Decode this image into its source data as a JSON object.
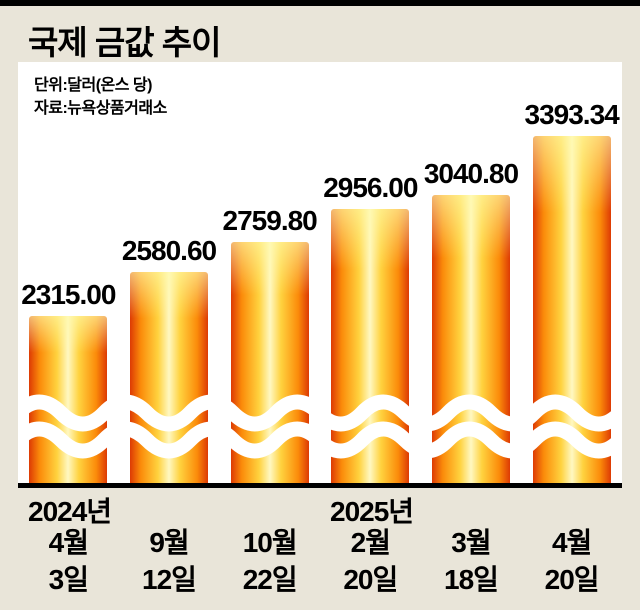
{
  "title": "국제 금값 추이",
  "meta": {
    "unit": "단위:달러(온스 당)",
    "source": "자료:뉴욕상품거래소"
  },
  "colors": {
    "background": "#e9e5d9",
    "plot_background": "#ffffff",
    "bar_edge": "#dd3a04",
    "bar_mid": "#ffd23f",
    "bar_center": "#fff8c2",
    "text": "#000000"
  },
  "chart_data": {
    "type": "bar",
    "title": "국제 금값 추이",
    "unit_label": "단위:달러(온스 당)",
    "source_label": "자료:뉴욕상품거래소",
    "categories": [
      "2024년 4월 3일",
      "9월 12일",
      "10월 22일",
      "2025년 2월 20일",
      "3월 18일",
      "4월 20일"
    ],
    "values": [
      2315.0,
      2580.6,
      2759.8,
      2956.0,
      3040.8,
      3393.34
    ],
    "ylim": [
      2315.0,
      3393.34
    ],
    "axis_break": true,
    "legend": "none",
    "grid": "off",
    "year_markers": [
      {
        "label": "2024년"
      },
      {
        "label": "2025년"
      }
    ],
    "bars": [
      {
        "value": 2315.0,
        "label": "2315.00",
        "month": "4월",
        "day": "3일"
      },
      {
        "value": 2580.6,
        "label": "2580.60",
        "month": "9월",
        "day": "12일"
      },
      {
        "value": 2759.8,
        "label": "2759.80",
        "month": "10월",
        "day": "22일"
      },
      {
        "value": 2956.0,
        "label": "2956.00",
        "month": "2월",
        "day": "20일"
      },
      {
        "value": 3040.8,
        "label": "3040.80",
        "month": "3월",
        "day": "18일"
      },
      {
        "value": 3393.34,
        "label": "3393.34",
        "month": "4월",
        "day": "20일"
      }
    ]
  }
}
